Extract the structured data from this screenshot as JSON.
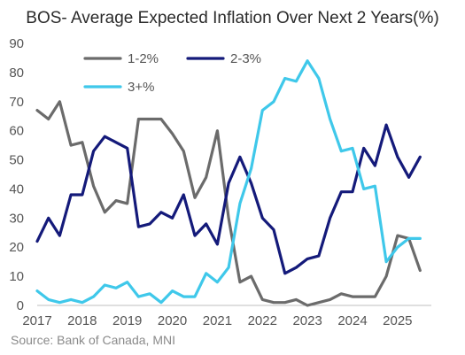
{
  "chart_data": {
    "type": "line",
    "title": "BOS- Average Expected Inflation Over Next 2 Years(%)",
    "source": "Source: Bank of Canada, MNI",
    "xlabel": "",
    "ylabel": "",
    "xlim": [
      2017,
      2025.75
    ],
    "ylim": [
      0,
      90
    ],
    "yticks": [
      "0",
      "10",
      "20",
      "30",
      "40",
      "50",
      "60",
      "70",
      "80",
      "90"
    ],
    "xticks": [
      "2017",
      "2018",
      "2019",
      "2020",
      "2021",
      "2022",
      "2023",
      "2024",
      "2025"
    ],
    "grid": false,
    "legend_position": "top-left",
    "x": [
      2017.0,
      2017.25,
      2017.5,
      2017.75,
      2018.0,
      2018.25,
      2018.5,
      2018.75,
      2019.0,
      2019.25,
      2019.5,
      2019.75,
      2020.0,
      2020.25,
      2020.5,
      2020.75,
      2021.0,
      2021.25,
      2021.5,
      2021.75,
      2022.0,
      2022.25,
      2022.5,
      2022.75,
      2023.0,
      2023.25,
      2023.5,
      2023.75,
      2024.0,
      2024.25,
      2024.5,
      2024.75,
      2025.0,
      2025.25,
      2025.5
    ],
    "series": [
      {
        "name": "1-2%",
        "color": "#6b6b6b",
        "values": [
          67,
          64,
          70,
          55,
          56,
          41,
          32,
          36,
          35,
          64,
          64,
          64,
          59,
          53,
          37,
          44,
          60,
          30,
          8,
          10,
          2,
          1,
          1,
          2,
          0,
          1,
          2,
          4,
          3,
          3,
          3,
          10,
          24,
          23,
          12
        ]
      },
      {
        "name": "2-3%",
        "color": "#141a7a",
        "values": [
          22,
          30,
          24,
          38,
          38,
          53,
          58,
          56,
          54,
          27,
          28,
          32,
          30,
          38,
          24,
          28,
          21,
          42,
          51,
          42,
          30,
          26,
          11,
          13,
          16,
          17,
          30,
          39,
          39,
          54,
          48,
          62,
          51,
          44,
          51
        ]
      },
      {
        "name": "3+%",
        "color": "#3fc8ea",
        "values": [
          5,
          2,
          1,
          2,
          1,
          3,
          7,
          6,
          8,
          3,
          4,
          1,
          5,
          3,
          3,
          11,
          8,
          13,
          35,
          47,
          67,
          70,
          78,
          77,
          84,
          78,
          64,
          53,
          54,
          40,
          41,
          15,
          20,
          23,
          23
        ]
      }
    ]
  }
}
